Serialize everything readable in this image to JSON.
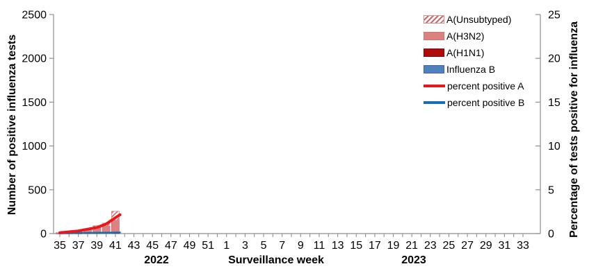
{
  "chart_data": {
    "type": "bar",
    "title": "",
    "xlabel": "Surveillance week",
    "ylabel_left": "Number of positive influenza tests",
    "ylabel_right": "Percentage of tests positive for influenza",
    "year_labels": [
      "2022",
      "2023"
    ],
    "ylim_left": [
      0,
      2500
    ],
    "yticks_left": [
      0,
      500,
      1000,
      1500,
      2000,
      2500
    ],
    "ylim_right": [
      0,
      25
    ],
    "yticks_right": [
      0,
      5,
      10,
      15,
      20,
      25
    ],
    "grid": "off",
    "legend_position": "top-right",
    "weeks": [
      35,
      36,
      37,
      38,
      39,
      40,
      41,
      42,
      43,
      44,
      45,
      46,
      47,
      48,
      49,
      50,
      51,
      52,
      1,
      2,
      3,
      4,
      5,
      6,
      7,
      8,
      9,
      10,
      11,
      12,
      13,
      14,
      15,
      16,
      17,
      18,
      19,
      20,
      21,
      22,
      23,
      24,
      25,
      26,
      27,
      28,
      29,
      30,
      31,
      32,
      33
    ],
    "x_tick_labels": [
      "35",
      "37",
      "39",
      "41",
      "43",
      "45",
      "47",
      "49",
      "51",
      "1",
      "3",
      "5",
      "7",
      "9",
      "11",
      "13",
      "15",
      "17",
      "19",
      "21",
      "23",
      "25",
      "27",
      "29",
      "31",
      "33"
    ],
    "bar_series": [
      {
        "key": "influenza_b",
        "name": "Influenza B",
        "values": [
          1,
          1,
          2,
          3,
          4,
          4,
          5,
          0,
          0,
          0,
          0,
          0,
          0,
          0,
          0,
          0,
          0,
          0,
          0,
          0,
          0,
          0,
          0,
          0,
          0,
          0,
          0,
          0,
          0,
          0,
          0,
          0,
          0,
          0,
          0,
          0,
          0,
          0,
          0,
          0,
          0,
          0,
          0,
          0,
          0,
          0,
          0,
          0,
          0,
          0,
          0
        ]
      },
      {
        "key": "a_h1n1",
        "name": "A(H1N1)",
        "values": [
          0,
          0,
          1,
          2,
          2,
          3,
          3,
          0,
          0,
          0,
          0,
          0,
          0,
          0,
          0,
          0,
          0,
          0,
          0,
          0,
          0,
          0,
          0,
          0,
          0,
          0,
          0,
          0,
          0,
          0,
          0,
          0,
          0,
          0,
          0,
          0,
          0,
          0,
          0,
          0,
          0,
          0,
          0,
          0,
          0,
          0,
          0,
          0,
          0,
          0,
          0
        ]
      },
      {
        "key": "a_h3n2",
        "name": "A(H3N2)",
        "values": [
          8,
          12,
          20,
          36,
          60,
          82,
          145,
          0,
          0,
          0,
          0,
          0,
          0,
          0,
          0,
          0,
          0,
          0,
          0,
          0,
          0,
          0,
          0,
          0,
          0,
          0,
          0,
          0,
          0,
          0,
          0,
          0,
          0,
          0,
          0,
          0,
          0,
          0,
          0,
          0,
          0,
          0,
          0,
          0,
          0,
          0,
          0,
          0,
          0,
          0,
          0
        ]
      },
      {
        "key": "a_unsubtyped",
        "name": "A(Unsubtyped)",
        "values": [
          2,
          4,
          8,
          14,
          24,
          30,
          102,
          0,
          0,
          0,
          0,
          0,
          0,
          0,
          0,
          0,
          0,
          0,
          0,
          0,
          0,
          0,
          0,
          0,
          0,
          0,
          0,
          0,
          0,
          0,
          0,
          0,
          0,
          0,
          0,
          0,
          0,
          0,
          0,
          0,
          0,
          0,
          0,
          0,
          0,
          0,
          0,
          0,
          0,
          0,
          0
        ]
      }
    ],
    "line_series": [
      {
        "key": "percent_b",
        "name": "percent positive B",
        "axis": "right",
        "values": [
          0.05,
          0.05,
          0.08,
          0.08,
          0.1,
          0.1,
          0.12,
          null,
          null,
          null,
          null,
          null,
          null,
          null,
          null,
          null,
          null,
          null,
          null,
          null,
          null,
          null,
          null,
          null,
          null,
          null,
          null,
          null,
          null,
          null,
          null,
          null,
          null,
          null,
          null,
          null,
          null,
          null,
          null,
          null,
          null,
          null,
          null,
          null,
          null,
          null,
          null,
          null,
          null,
          null,
          null
        ]
      },
      {
        "key": "percent_a",
        "name": "percent positive A",
        "axis": "right",
        "values": [
          0.1,
          0.2,
          0.3,
          0.5,
          0.7,
          1.1,
          1.8,
          null,
          null,
          null,
          null,
          null,
          null,
          null,
          null,
          null,
          null,
          null,
          null,
          null,
          null,
          null,
          null,
          null,
          null,
          null,
          null,
          null,
          null,
          null,
          null,
          null,
          null,
          null,
          null,
          null,
          null,
          null,
          null,
          null,
          null,
          null,
          null,
          null,
          null,
          null,
          null,
          null,
          null,
          null,
          null
        ]
      }
    ],
    "legend": [
      {
        "label": "A(Unsubtyped)",
        "swatch": "hatch"
      },
      {
        "label": "A(H3N2)",
        "swatch": "h3n2"
      },
      {
        "label": "A(H1N1)",
        "swatch": "h1n1"
      },
      {
        "label": "Influenza B",
        "swatch": "b"
      },
      {
        "label": "percent positive A",
        "swatch": "lineA"
      },
      {
        "label": "percent positive B",
        "swatch": "lineB"
      }
    ],
    "colors": {
      "a_unsubtyped_hatch": "#c96a6a",
      "a_unsubtyped_border": "#d48c8c",
      "a_h3n2": "#d9827f",
      "a_h3n2_border": "#c97472",
      "a_h1n1": "#b00b0b",
      "a_h1n1_border": "#7d0505",
      "influenza_b": "#4f81bd",
      "influenza_b_border": "#3c659a",
      "percent_a_line": "#e8161d",
      "percent_b_line": "#1b6db1",
      "axis": "#8e8e8e",
      "text": "#000000"
    }
  }
}
